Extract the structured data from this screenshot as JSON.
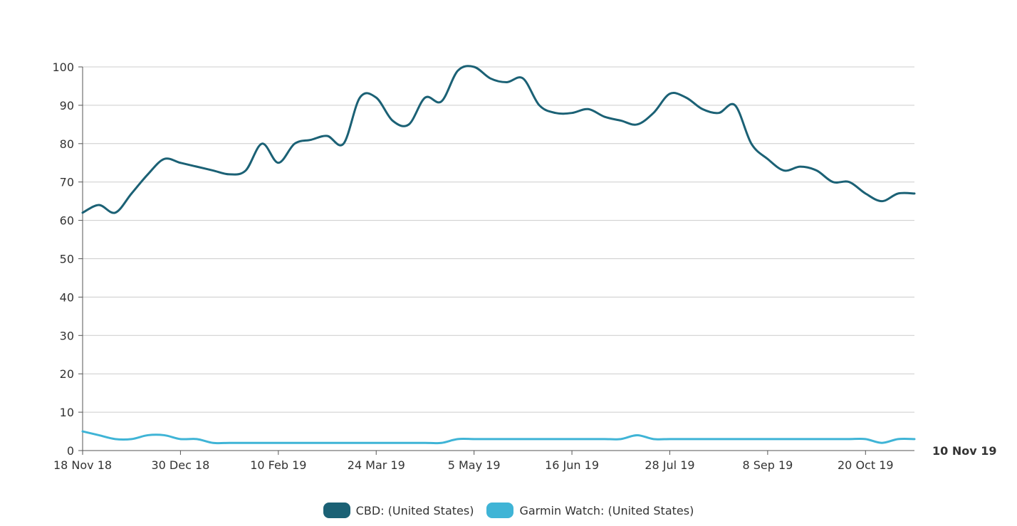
{
  "chart_data": {
    "type": "line",
    "title": "",
    "xlabel": "",
    "ylabel": "",
    "ylim": [
      0,
      100
    ],
    "yticks": [
      0,
      10,
      20,
      30,
      40,
      50,
      60,
      70,
      80,
      90,
      100
    ],
    "grid": true,
    "legend_position": "bottom-center",
    "end_label": "10 Nov 19",
    "x_tick_labels": [
      "18 Nov 18",
      "30 Dec 18",
      "10 Feb 19",
      "24 Mar 19",
      "5 May 19",
      "16 Jun 19",
      "28 Jul 19",
      "8 Sep 19",
      "20 Oct 19"
    ],
    "x": [
      "2018-11-18",
      "2018-11-25",
      "2018-12-02",
      "2018-12-09",
      "2018-12-16",
      "2018-12-23",
      "2018-12-30",
      "2019-01-06",
      "2019-01-13",
      "2019-01-20",
      "2019-01-27",
      "2019-02-03",
      "2019-02-10",
      "2019-02-17",
      "2019-02-24",
      "2019-03-03",
      "2019-03-10",
      "2019-03-17",
      "2019-03-24",
      "2019-03-31",
      "2019-04-07",
      "2019-04-14",
      "2019-04-21",
      "2019-04-28",
      "2019-05-05",
      "2019-05-12",
      "2019-05-19",
      "2019-05-26",
      "2019-06-02",
      "2019-06-09",
      "2019-06-16",
      "2019-06-23",
      "2019-06-30",
      "2019-07-07",
      "2019-07-14",
      "2019-07-21",
      "2019-07-28",
      "2019-08-04",
      "2019-08-11",
      "2019-08-18",
      "2019-08-25",
      "2019-09-01",
      "2019-09-08",
      "2019-09-15",
      "2019-09-22",
      "2019-09-29",
      "2019-10-06",
      "2019-10-13",
      "2019-10-20",
      "2019-10-27",
      "2019-11-03",
      "2019-11-10"
    ],
    "series": [
      {
        "name": "CBD: (United States)",
        "color": "#1b6175",
        "values": [
          62,
          64,
          62,
          67,
          72,
          76,
          75,
          74,
          73,
          72,
          73,
          80,
          75,
          80,
          81,
          82,
          80,
          92,
          92,
          86,
          85,
          92,
          91,
          99,
          100,
          97,
          96,
          97,
          90,
          88,
          88,
          89,
          87,
          86,
          85,
          88,
          93,
          92,
          89,
          88,
          90,
          80,
          76,
          73,
          74,
          73,
          70,
          70,
          67,
          65,
          67,
          67
        ]
      },
      {
        "name": "Garmin Watch: (United States)",
        "color": "#3fb4d6",
        "values": [
          5,
          4,
          3,
          3,
          4,
          4,
          3,
          3,
          2,
          2,
          2,
          2,
          2,
          2,
          2,
          2,
          2,
          2,
          2,
          2,
          2,
          2,
          2,
          3,
          3,
          3,
          3,
          3,
          3,
          3,
          3,
          3,
          3,
          3,
          4,
          3,
          3,
          3,
          3,
          3,
          3,
          3,
          3,
          3,
          3,
          3,
          3,
          3,
          3,
          2,
          3,
          3
        ]
      }
    ]
  }
}
